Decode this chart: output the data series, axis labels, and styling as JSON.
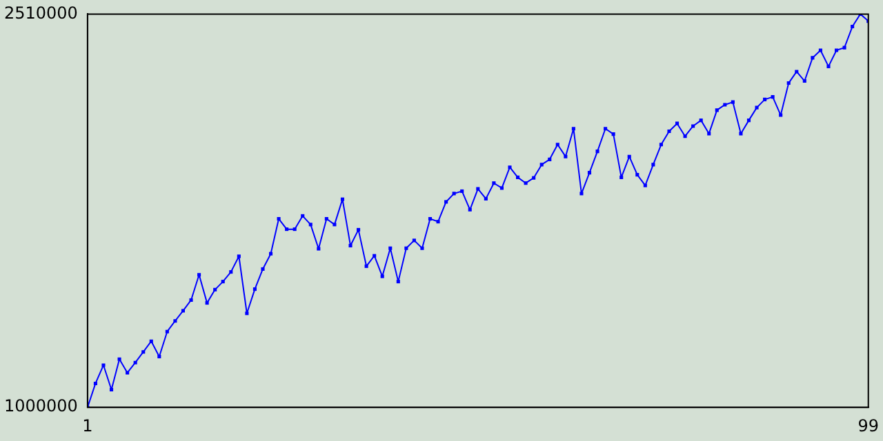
{
  "chart_data": {
    "type": "line",
    "x": [
      1,
      2,
      3,
      4,
      5,
      6,
      7,
      8,
      9,
      10,
      11,
      12,
      13,
      14,
      15,
      16,
      17,
      18,
      19,
      20,
      21,
      22,
      23,
      24,
      25,
      26,
      27,
      28,
      29,
      30,
      31,
      32,
      33,
      34,
      35,
      36,
      37,
      38,
      39,
      40,
      41,
      42,
      43,
      44,
      45,
      46,
      47,
      48,
      49,
      50,
      51,
      52,
      53,
      54,
      55,
      56,
      57,
      58,
      59,
      60,
      61,
      62,
      63,
      64,
      65,
      66,
      67,
      68,
      69,
      70,
      71,
      72,
      73,
      74,
      75,
      76,
      77,
      78,
      79,
      80,
      81,
      82,
      83,
      84,
      85,
      86,
      87,
      88,
      89,
      90,
      91,
      92,
      93,
      94,
      95,
      96,
      97,
      98,
      99
    ],
    "series": [
      {
        "color": "#0000ff",
        "values": [
          1000000,
          1092000,
          1162000,
          1068000,
          1185000,
          1133000,
          1172000,
          1213000,
          1254000,
          1195000,
          1291000,
          1332000,
          1371000,
          1412000,
          1509000,
          1401000,
          1452000,
          1483000,
          1520000,
          1580000,
          1361000,
          1454000,
          1531000,
          1590000,
          1724000,
          1684000,
          1684000,
          1735000,
          1702000,
          1609000,
          1724000,
          1702000,
          1799000,
          1621000,
          1682000,
          1542000,
          1582000,
          1503000,
          1611000,
          1483000,
          1611000,
          1641000,
          1611000,
          1724000,
          1713000,
          1789000,
          1821000,
          1830000,
          1759000,
          1839000,
          1801000,
          1861000,
          1842000,
          1922000,
          1883000,
          1861000,
          1881000,
          1932000,
          1952000,
          2009000,
          1963000,
          2070000,
          1821000,
          1901000,
          1983000,
          2070000,
          2049000,
          1883000,
          1963000,
          1893000,
          1852000,
          1932000,
          2009000,
          2060000,
          2090000,
          2041000,
          2080000,
          2102000,
          2051000,
          2141000,
          2162000,
          2172000,
          2051000,
          2102000,
          2151000,
          2182000,
          2192000,
          2122000,
          2245000,
          2289000,
          2253000,
          2342000,
          2371000,
          2309000,
          2371000,
          2381000,
          2462000,
          2510000,
          2483000
        ]
      }
    ],
    "xlim": [
      1,
      99
    ],
    "xticks": [
      1,
      99
    ],
    "ylim": [
      1000000,
      2510000
    ],
    "yticks": [
      1000000,
      2510000
    ],
    "grid": false,
    "legend": false,
    "marker": "square",
    "line_style": "solid"
  }
}
